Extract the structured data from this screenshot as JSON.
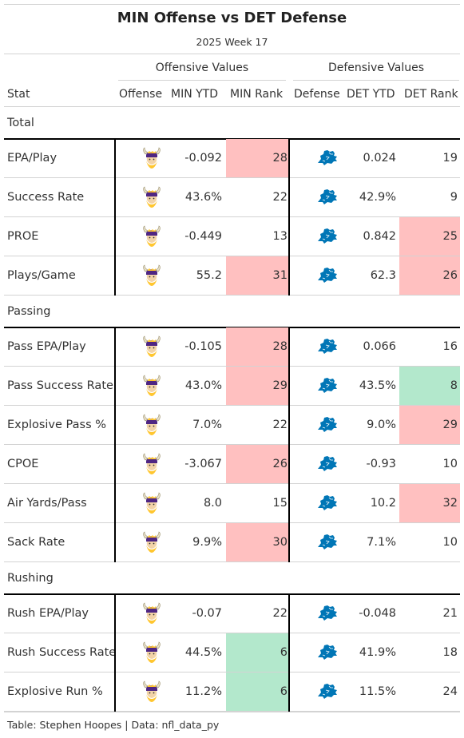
{
  "title": "MIN Offense vs DET Defense",
  "subtitle": "2025 Week 17",
  "spanners": {
    "offense": "Offensive Values",
    "defense": "Defensive Values"
  },
  "columns": {
    "stat": "Stat",
    "offense": "Offense",
    "off_ytd": "MIN YTD",
    "off_rank": "MIN Rank",
    "defense": "Defense",
    "def_ytd": "DET YTD",
    "def_rank": "DET Rank"
  },
  "colors": {
    "bad": "#ffc0c0",
    "good": "#b3e8cc",
    "border": "#000000",
    "rule": "#d3d3d3"
  },
  "icons": {
    "offense": "vikings-logo-icon",
    "defense": "lions-logo-icon"
  },
  "groups": [
    {
      "name": "Total",
      "rows": [
        {
          "stat": "EPA/Play",
          "off_ytd": "-0.092",
          "off_rank": "28",
          "off_hl": "bad",
          "def_ytd": "0.024",
          "def_rank": "19",
          "def_hl": ""
        },
        {
          "stat": "Success Rate",
          "off_ytd": "43.6%",
          "off_rank": "22",
          "off_hl": "",
          "def_ytd": "42.9%",
          "def_rank": "9",
          "def_hl": ""
        },
        {
          "stat": "PROE",
          "off_ytd": "-0.449",
          "off_rank": "13",
          "off_hl": "",
          "def_ytd": "0.842",
          "def_rank": "25",
          "def_hl": "bad"
        },
        {
          "stat": "Plays/Game",
          "off_ytd": "55.2",
          "off_rank": "31",
          "off_hl": "bad",
          "def_ytd": "62.3",
          "def_rank": "26",
          "def_hl": "bad"
        }
      ]
    },
    {
      "name": "Passing",
      "rows": [
        {
          "stat": "Pass EPA/Play",
          "off_ytd": "-0.105",
          "off_rank": "28",
          "off_hl": "bad",
          "def_ytd": "0.066",
          "def_rank": "16",
          "def_hl": ""
        },
        {
          "stat": "Pass Success Rate",
          "off_ytd": "43.0%",
          "off_rank": "29",
          "off_hl": "bad",
          "def_ytd": "43.5%",
          "def_rank": "8",
          "def_hl": "good"
        },
        {
          "stat": "Explosive Pass %",
          "off_ytd": "7.0%",
          "off_rank": "22",
          "off_hl": "",
          "def_ytd": "9.0%",
          "def_rank": "29",
          "def_hl": "bad"
        },
        {
          "stat": "CPOE",
          "off_ytd": "-3.067",
          "off_rank": "26",
          "off_hl": "bad",
          "def_ytd": "-0.93",
          "def_rank": "10",
          "def_hl": ""
        },
        {
          "stat": "Air Yards/Pass",
          "off_ytd": "8.0",
          "off_rank": "15",
          "off_hl": "",
          "def_ytd": "10.2",
          "def_rank": "32",
          "def_hl": "bad"
        },
        {
          "stat": "Sack Rate",
          "off_ytd": "9.9%",
          "off_rank": "30",
          "off_hl": "bad",
          "def_ytd": "7.1%",
          "def_rank": "10",
          "def_hl": ""
        }
      ]
    },
    {
      "name": "Rushing",
      "rows": [
        {
          "stat": "Rush EPA/Play",
          "off_ytd": "-0.07",
          "off_rank": "22",
          "off_hl": "",
          "def_ytd": "-0.048",
          "def_rank": "21",
          "def_hl": ""
        },
        {
          "stat": "Rush Success Rate",
          "off_ytd": "44.5%",
          "off_rank": "6",
          "off_hl": "good",
          "def_ytd": "41.9%",
          "def_rank": "18",
          "def_hl": ""
        },
        {
          "stat": "Explosive Run %",
          "off_ytd": "11.2%",
          "off_rank": "6",
          "off_hl": "good",
          "def_ytd": "11.5%",
          "def_rank": "24",
          "def_hl": ""
        }
      ]
    }
  ],
  "footer": "Table: Stephen Hoopes | Data: nfl_data_py"
}
